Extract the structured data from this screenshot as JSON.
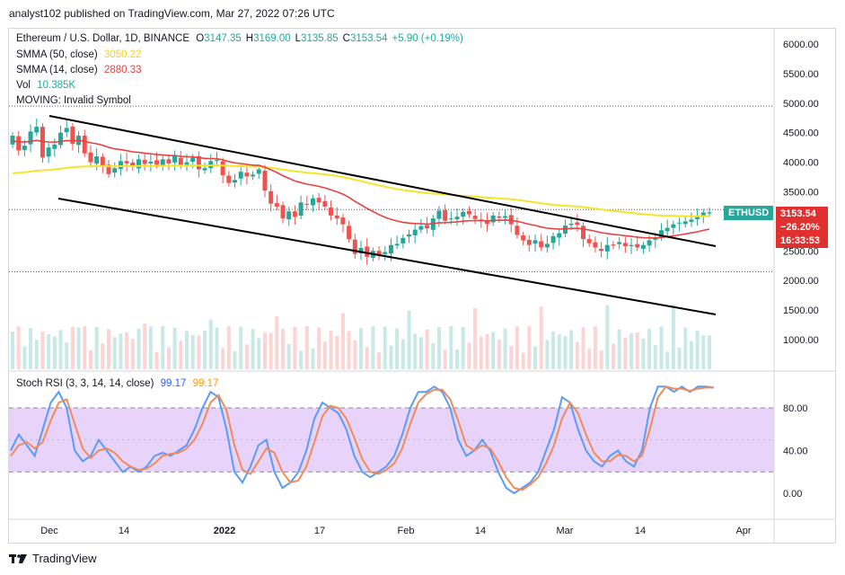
{
  "header": {
    "publisher": "analyst102 published on TradingView.com, Mar 27, 2022 07:26 UTC"
  },
  "legend": {
    "symbol": "Ethereum / U.S. Dollar, 1D, BINANCE",
    "o_label": "O",
    "o": "3147.35",
    "h_label": "H",
    "h": "3169.00",
    "l_label": "L",
    "l": "3135.85",
    "c_label": "C",
    "c": "3153.54",
    "change": "+5.90 (+0.19%)",
    "smma50_label": "SMMA (50, close)",
    "smma50_value": "3050.22",
    "smma14_label": "SMMA (14, close)",
    "smma14_value": "2880.33",
    "vol_label": "Vol",
    "vol_value": "10.385K",
    "moving_label": "MOVING: Invalid Symbol"
  },
  "price_tag": {
    "symbol": "ETHUSD",
    "price": "3153.54",
    "change": "−26.20%",
    "countdown": "16:33:53"
  },
  "stoch": {
    "label": "Stoch RSI (3, 3, 14, 14, close)",
    "k_value": "99.17",
    "d_value": "99.17"
  },
  "footer": {
    "brand": "TradingView"
  },
  "colors": {
    "up": "#26a69a",
    "down": "#ef5350",
    "smma50": "#f5e52a",
    "smma14": "#e84141",
    "stoch_k": "#5b9bf5",
    "stoch_d": "#f08b5b",
    "band": "#e8d4fb"
  },
  "chart_data": [
    {
      "type": "candlestick",
      "title": "Ethereum / U.S. Dollar, 1D, BINANCE",
      "x_ticks": [
        "Dec",
        "14",
        "2022",
        "17",
        "Feb",
        "14",
        "Mar",
        "14",
        "Apr"
      ],
      "y_ticks": [
        1000,
        1500,
        2000,
        2500,
        3000,
        3500,
        4000,
        4500,
        5000,
        5500,
        6000
      ],
      "ylim": [
        700,
        6200
      ],
      "close": [
        4450,
        4200,
        4280,
        4520,
        4600,
        4080,
        4250,
        4300,
        4500,
        4580,
        4310,
        4450,
        4150,
        4000,
        4100,
        3950,
        3800,
        3900,
        4020,
        3980,
        3920,
        4050,
        3970,
        4010,
        3960,
        4050,
        3980,
        4100,
        3950,
        4000,
        4080,
        3880,
        3900,
        4020,
        4040,
        3780,
        3650,
        3700,
        3840,
        3760,
        3790,
        3880,
        3520,
        3300,
        3250,
        3050,
        3170,
        3080,
        3320,
        3280,
        3390,
        3320,
        3250,
        3100,
        3050,
        2950,
        2700,
        2450,
        2550,
        2400,
        2500,
        2430,
        2480,
        2600,
        2620,
        2720,
        2780,
        2860,
        2920,
        2880,
        3050,
        3180,
        3010,
        3050,
        3080,
        3160,
        3120,
        3040,
        3000,
        2960,
        3100,
        3060,
        3090,
        2950,
        2770,
        2680,
        2600,
        2680,
        2560,
        2620,
        2750,
        2800,
        2930,
        2960,
        2940,
        2700,
        2630,
        2560,
        2500,
        2600,
        2590,
        2650,
        2580,
        2600,
        2560,
        2600,
        2680,
        2710,
        2850,
        2890,
        2950,
        2980,
        3000,
        3030,
        3080,
        3150,
        3153
      ],
      "volume_note": "daily volume bars, peak ~1.6K units scale",
      "series": [
        {
          "name": "SMMA (50, close)",
          "last": 3050.22
        },
        {
          "name": "SMMA (14, close)",
          "last": 2880.33
        }
      ]
    },
    {
      "type": "line",
      "title": "Stoch RSI (3, 3, 14, 14, close)",
      "y_ticks": [
        0,
        40,
        80
      ],
      "ylim": [
        -20,
        110
      ],
      "band": [
        20,
        80
      ],
      "series": [
        {
          "name": "K",
          "values": [
            40,
            55,
            45,
            35,
            60,
            85,
            95,
            80,
            40,
            30,
            35,
            50,
            40,
            30,
            20,
            25,
            20,
            25,
            35,
            38,
            35,
            40,
            45,
            60,
            80,
            95,
            90,
            60,
            20,
            10,
            25,
            45,
            50,
            20,
            5,
            10,
            20,
            40,
            70,
            85,
            80,
            75,
            60,
            35,
            20,
            15,
            20,
            25,
            35,
            55,
            80,
            95,
            95,
            100,
            95,
            80,
            50,
            35,
            40,
            50,
            40,
            20,
            5,
            0,
            5,
            10,
            20,
            40,
            60,
            90,
            85,
            60,
            40,
            30,
            25,
            35,
            40,
            30,
            25,
            40,
            80,
            100,
            100,
            95,
            100,
            95,
            100,
            100,
            99
          ]
        },
        {
          "name": "D",
          "values": [
            35,
            45,
            48,
            42,
            48,
            68,
            85,
            88,
            65,
            42,
            33,
            40,
            42,
            38,
            30,
            25,
            22,
            23,
            28,
            35,
            37,
            38,
            42,
            50,
            65,
            85,
            92,
            78,
            45,
            22,
            18,
            30,
            42,
            38,
            20,
            10,
            12,
            25,
            48,
            72,
            82,
            80,
            70,
            52,
            32,
            20,
            18,
            22,
            28,
            42,
            65,
            85,
            93,
            97,
            97,
            88,
            68,
            45,
            40,
            45,
            42,
            30,
            15,
            5,
            3,
            8,
            15,
            28,
            45,
            70,
            85,
            75,
            55,
            38,
            30,
            30,
            36,
            35,
            30,
            35,
            60,
            90,
            100,
            98,
            98,
            96,
            98,
            99,
            99
          ]
        }
      ]
    }
  ]
}
